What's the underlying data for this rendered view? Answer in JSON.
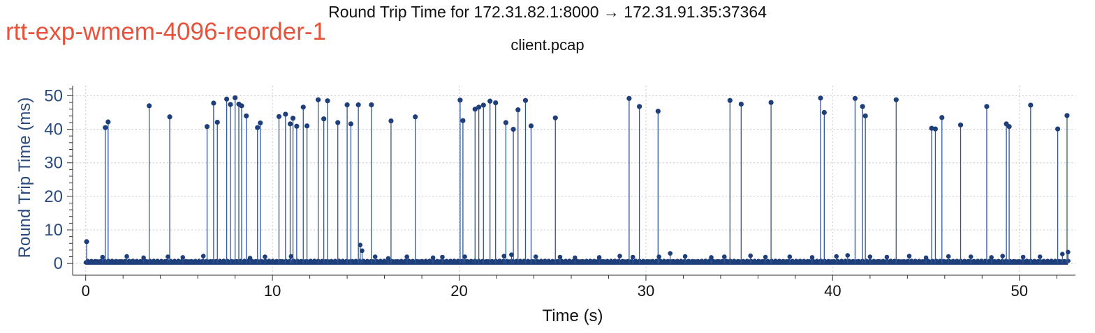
{
  "chart_data": {
    "type": "scatter",
    "title": "Round Trip Time for 172.31.82.1:8000 → 172.31.91.35:37364",
    "subtitle": "client.pcap",
    "corner_label": "rtt-exp-wmem-4096-reorder-1",
    "xlabel": "Time (s)",
    "ylabel": "Round Trip Time (ms)",
    "xlim": [
      -0.7,
      53.0
    ],
    "ylim": [
      -3.5,
      53.0
    ],
    "xticks": [
      0,
      10,
      20,
      30,
      40,
      50
    ],
    "yticks": [
      0,
      10,
      20,
      30,
      40,
      50
    ],
    "grid": true,
    "style": "stem",
    "colors": {
      "series": "#1f3f7a",
      "stem": "#2f5597",
      "ylabel": "#2b4b7e",
      "corner_label": "#e8513a"
    },
    "series": [
      {
        "x": [
          0.05,
          1.05,
          1.2,
          3.4,
          4.5,
          6.5,
          6.85,
          7.05,
          7.55,
          7.75,
          8.0,
          8.2,
          8.35,
          8.6,
          9.2,
          9.35,
          10.35,
          10.7,
          10.95,
          11.1,
          11.3,
          11.65,
          11.85,
          12.45,
          12.75,
          12.95,
          13.5,
          14.0,
          14.2,
          14.6,
          15.3,
          16.35,
          17.65,
          20.05,
          20.2,
          20.85,
          21.05,
          21.3,
          21.65,
          21.95,
          22.5,
          22.9,
          23.15,
          23.55,
          23.85,
          25.15,
          29.1,
          29.65,
          30.65,
          34.5,
          35.1,
          36.7,
          39.35,
          39.55,
          41.2,
          41.6,
          41.75,
          43.4,
          45.3,
          45.5,
          45.85,
          46.85,
          48.25,
          49.3,
          49.45,
          50.6,
          52.05,
          52.55
        ],
        "y": [
          6.5,
          40.5,
          42.2,
          47.0,
          43.7,
          40.8,
          47.8,
          42.1,
          49.0,
          47.4,
          49.4,
          47.5,
          47.0,
          44.0,
          40.5,
          41.9,
          43.8,
          44.5,
          41.6,
          43.3,
          40.9,
          46.6,
          41.0,
          48.8,
          43.1,
          48.5,
          42.0,
          47.3,
          41.6,
          47.3,
          47.3,
          42.5,
          43.7,
          48.7,
          42.6,
          46.0,
          46.6,
          47.2,
          48.4,
          47.9,
          42.0,
          40.0,
          45.8,
          48.6,
          41.0,
          43.4,
          49.2,
          46.8,
          45.4,
          48.6,
          47.5,
          48.0,
          49.3,
          45.0,
          49.2,
          46.8,
          44.0,
          48.8,
          40.3,
          40.1,
          43.5,
          41.3,
          46.8,
          41.6,
          40.8,
          47.2,
          40.1,
          44.1
        ],
        "x_minor": [
          0.9,
          2.2,
          3.1,
          4.4,
          5.2,
          6.3,
          8.8,
          9.6,
          11.0,
          14.7,
          14.8,
          15.5,
          16.2,
          17.2,
          18.6,
          19.1,
          20.3,
          22.4,
          22.8,
          24.1,
          25.4,
          26.2,
          27.5,
          28.6,
          29.3,
          30.7,
          31.3,
          32.1,
          33.5,
          34.2,
          35.6,
          36.4,
          37.7,
          38.9,
          40.2,
          40.8,
          42.0,
          42.9,
          44.1,
          45.0,
          46.2,
          47.4,
          48.5,
          49.1,
          50.2,
          51.1,
          52.3,
          52.6
        ],
        "y_minor": [
          1.9,
          2.1,
          1.7,
          2.0,
          1.8,
          2.2,
          1.6,
          2.0,
          2.1,
          5.5,
          3.8,
          2.0,
          1.5,
          2.0,
          1.7,
          1.9,
          2.0,
          2.2,
          2.6,
          2.0,
          1.9,
          1.7,
          1.8,
          2.2,
          1.9,
          2.0,
          3.0,
          2.1,
          1.8,
          2.0,
          2.3,
          1.9,
          2.0,
          1.8,
          2.1,
          2.4,
          2.0,
          1.9,
          2.2,
          1.7,
          2.1,
          2.0,
          1.8,
          2.2,
          1.9,
          2.0,
          2.8,
          3.4
        ]
      }
    ]
  }
}
